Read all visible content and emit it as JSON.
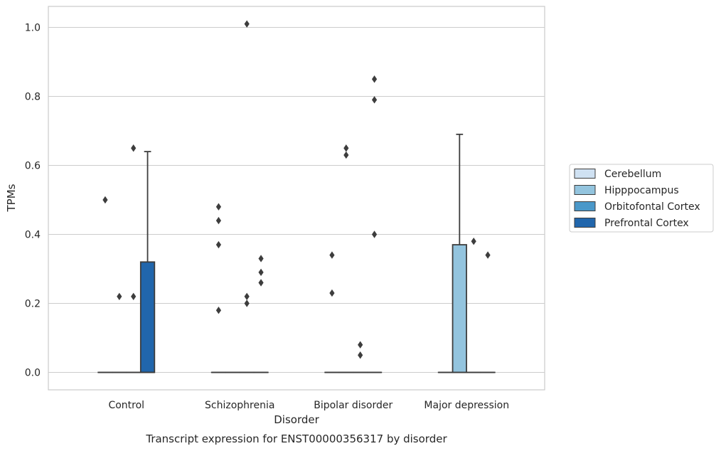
{
  "chart_data": {
    "type": "box",
    "caption": "Transcript expression for ENST00000356317 by disorder",
    "xlabel": "Disorder",
    "ylabel": "TPMs",
    "ylim": [
      -0.05,
      1.06
    ],
    "yticks": [
      "0.0",
      "0.2",
      "0.4",
      "0.6",
      "0.8",
      "1.0"
    ],
    "grid": true,
    "legend_position": "right",
    "categories": [
      "Control",
      "Schizophrenia",
      "Bipolar disorder",
      "Major depression"
    ],
    "series": [
      {
        "name": "Cerebellum",
        "color": "#cfe1f2",
        "boxes": [
          {
            "q1": 0,
            "median": 0,
            "q3": 0,
            "whislo": 0,
            "whishi": 0,
            "fliers": [
              0.5
            ]
          },
          {
            "q1": 0,
            "median": 0,
            "q3": 0,
            "whislo": 0,
            "whishi": 0,
            "fliers": [
              0.18,
              0.37,
              0.44,
              0.48
            ]
          },
          {
            "q1": 0,
            "median": 0,
            "q3": 0,
            "whislo": 0,
            "whishi": 0,
            "fliers": [
              0.23,
              0.34
            ]
          },
          {
            "q1": 0,
            "median": 0,
            "q3": 0,
            "whislo": 0,
            "whishi": 0,
            "fliers": []
          }
        ]
      },
      {
        "name": "Hipppocampus",
        "color": "#93c4de",
        "boxes": [
          {
            "q1": 0,
            "median": 0,
            "q3": 0,
            "whislo": 0,
            "whishi": 0,
            "fliers": [
              0.22
            ]
          },
          {
            "q1": 0,
            "median": 0,
            "q3": 0,
            "whislo": 0,
            "whishi": 0,
            "fliers": []
          },
          {
            "q1": 0,
            "median": 0,
            "q3": 0,
            "whislo": 0,
            "whishi": 0,
            "fliers": [
              0.63,
              0.65
            ]
          },
          {
            "q1": 0,
            "median": 0,
            "q3": 0.37,
            "whislo": 0,
            "whishi": 0.69,
            "fliers": []
          }
        ]
      },
      {
        "name": "Orbitofontal Cortex",
        "color": "#4a98c9",
        "boxes": [
          {
            "q1": 0,
            "median": 0,
            "q3": 0,
            "whislo": 0,
            "whishi": 0,
            "fliers": [
              0.22,
              0.65
            ]
          },
          {
            "q1": 0,
            "median": 0,
            "q3": 0,
            "whislo": 0,
            "whishi": 0,
            "fliers": [
              0.2,
              0.22,
              1.01
            ]
          },
          {
            "q1": 0,
            "median": 0,
            "q3": 0,
            "whislo": 0,
            "whishi": 0,
            "fliers": [
              0.05,
              0.08
            ]
          },
          {
            "q1": 0,
            "median": 0,
            "q3": 0,
            "whislo": 0,
            "whishi": 0,
            "fliers": [
              0.38
            ]
          }
        ]
      },
      {
        "name": "Prefrontal Cortex",
        "color": "#2166ac",
        "boxes": [
          {
            "q1": 0,
            "median": 0,
            "q3": 0.32,
            "whislo": 0,
            "whishi": 0.64,
            "fliers": []
          },
          {
            "q1": 0,
            "median": 0,
            "q3": 0,
            "whislo": 0,
            "whishi": 0,
            "fliers": [
              0.26,
              0.29,
              0.33
            ]
          },
          {
            "q1": 0,
            "median": 0,
            "q3": 0,
            "whislo": 0,
            "whishi": 0,
            "fliers": [
              0.4,
              0.79,
              0.85
            ]
          },
          {
            "q1": 0,
            "median": 0,
            "q3": 0,
            "whislo": 0,
            "whishi": 0,
            "fliers": [
              0.34
            ]
          }
        ]
      }
    ]
  }
}
